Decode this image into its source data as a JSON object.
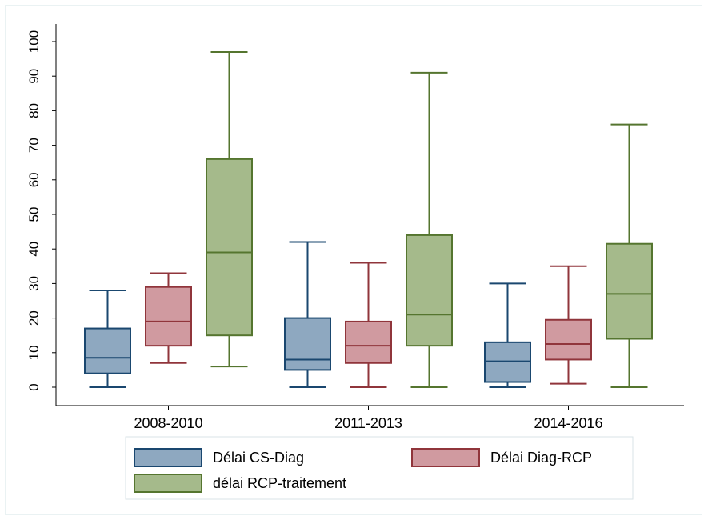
{
  "chart_data": {
    "type": "boxplot",
    "title": "",
    "xlabel": "",
    "ylabel": "",
    "ylim": [
      -5,
      105
    ],
    "yticks": [
      0,
      10,
      20,
      30,
      40,
      50,
      60,
      70,
      80,
      90,
      100
    ],
    "y_tick_labels": [
      "0",
      "10",
      "20",
      "30",
      "40",
      "50",
      "60",
      "70",
      "80",
      "90",
      "100"
    ],
    "categories": [
      "2008-2010",
      "2011-2013",
      "2014-2016"
    ],
    "legend_position": "bottom",
    "series": [
      {
        "name": "Délai CS-Diag",
        "fill": "#8ea8c0",
        "stroke": "#1a476f",
        "boxes": [
          {
            "whisker_low": 0,
            "q1": 4,
            "median": 8.5,
            "q3": 17,
            "whisker_high": 28
          },
          {
            "whisker_low": 0,
            "q1": 5,
            "median": 8,
            "q3": 20,
            "whisker_high": 42
          },
          {
            "whisker_low": 0,
            "q1": 1.5,
            "median": 7.5,
            "q3": 13,
            "whisker_high": 30
          }
        ]
      },
      {
        "name": "Délai Diag-RCP",
        "fill": "#d09aa0",
        "stroke": "#90353b",
        "boxes": [
          {
            "whisker_low": 7,
            "q1": 12,
            "median": 19,
            "q3": 29,
            "whisker_high": 33
          },
          {
            "whisker_low": 0,
            "q1": 7,
            "median": 12,
            "q3": 19,
            "whisker_high": 36
          },
          {
            "whisker_low": 1,
            "q1": 8,
            "median": 12.5,
            "q3": 19.5,
            "whisker_high": 35
          }
        ]
      },
      {
        "name": "délai RCP-traitement",
        "fill": "#a5ba8b",
        "stroke": "#55752f",
        "boxes": [
          {
            "whisker_low": 6,
            "q1": 15,
            "median": 39,
            "q3": 66,
            "whisker_high": 97
          },
          {
            "whisker_low": 0,
            "q1": 12,
            "median": 21,
            "q3": 44,
            "whisker_high": 91
          },
          {
            "whisker_low": 0,
            "q1": 14,
            "median": 27,
            "q3": 41.5,
            "whisker_high": 76
          }
        ]
      }
    ]
  }
}
